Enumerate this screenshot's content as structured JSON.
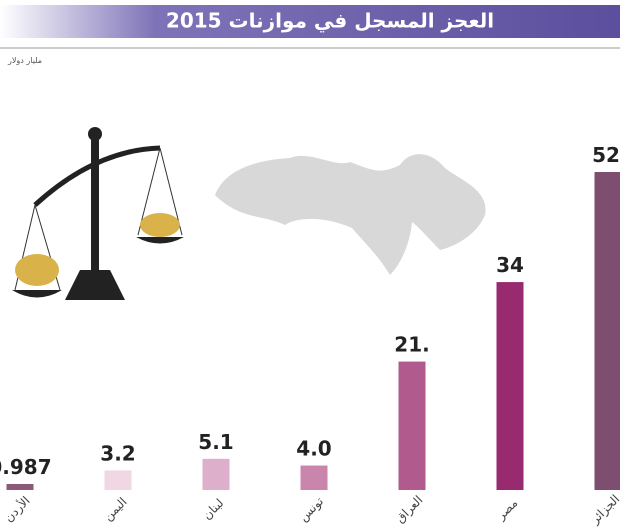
{
  "chart_data": {
    "type": "bar",
    "title": "العجز المسجل في موازنات 2015",
    "unit": "مليار دولار",
    "categories": [
      "الأردن",
      "اليمن",
      "لبنان",
      "تونس",
      "العراق",
      "مصر",
      "الجزائر"
    ],
    "values": [
      0.987,
      3.2,
      5.1,
      4,
      21,
      34,
      52
    ],
    "value_labels": [
      "0.987",
      "3.2",
      "5.1",
      "4.0",
      "21.",
      "34",
      "52"
    ],
    "colors": [
      "#8a5a78",
      "#f1d6e3",
      "#ddafcb",
      "#c985ab",
      "#b15a8e",
      "#982a70",
      "#7e4e70"
    ]
  }
}
